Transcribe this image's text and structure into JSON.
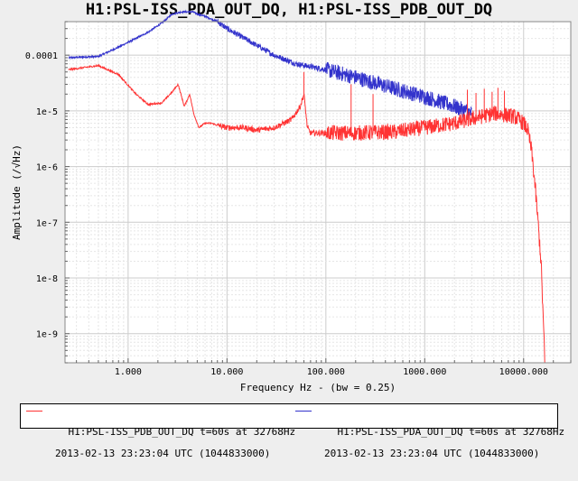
{
  "chart_data": {
    "type": "line",
    "title": "H1:PSL-ISS_PDA_OUT_DQ, H1:PSL-ISS_PDB_OUT_DQ",
    "xlabel": "Frequency Hz - (bw = 0.25)",
    "ylabel": "Amplitude  (/√Hz)",
    "xscale": "log",
    "yscale": "log",
    "xlim": [
      0.23,
      30000
    ],
    "ylim": [
      3e-10,
      0.0004
    ],
    "x_ticks": [
      {
        "value": 1,
        "label": "1.000"
      },
      {
        "value": 10,
        "label": "10.000"
      },
      {
        "value": 100,
        "label": "100.000"
      },
      {
        "value": 1000,
        "label": "1000.000"
      },
      {
        "value": 10000,
        "label": "10000.000"
      }
    ],
    "y_ticks": [
      {
        "value": 0.0001,
        "label": "0.0001"
      },
      {
        "value": 1e-05,
        "label": "1e-5"
      },
      {
        "value": 1e-06,
        "label": "1e-6"
      },
      {
        "value": 1e-07,
        "label": "1e-7"
      },
      {
        "value": 1e-08,
        "label": "1e-8"
      },
      {
        "value": 1e-09,
        "label": "1e-9"
      }
    ],
    "grid": true,
    "series": [
      {
        "name": "H1:PSL-ISS_PDB_OUT_DQ t=60s at 32768Hz",
        "color": "#ff3333",
        "x": [
          0.25,
          0.5,
          0.8,
          1.2,
          1.6,
          2.2,
          2.8,
          3.2,
          3.7,
          4.2,
          4.6,
          5.2,
          6,
          7,
          8,
          10,
          15,
          20,
          30,
          45,
          55,
          60,
          65,
          70,
          100,
          200,
          500,
          1000,
          2000,
          5000,
          8000,
          10000,
          11000,
          12000,
          13000,
          14000,
          15000,
          16000,
          16384
        ],
        "y": [
          5.5e-05,
          6.5e-05,
          4.5e-05,
          2e-05,
          1.3e-05,
          1.4e-05,
          2.2e-05,
          3e-05,
          1.2e-05,
          2e-05,
          9e-06,
          5e-06,
          6e-06,
          6e-06,
          5.5e-06,
          5e-06,
          5e-06,
          4.5e-06,
          5e-06,
          7e-06,
          1.2e-05,
          2e-05,
          5e-06,
          4e-06,
          4e-06,
          4e-06,
          4.2e-06,
          5e-06,
          6e-06,
          9e-06,
          8e-06,
          6e-06,
          4.5e-06,
          2e-06,
          5e-07,
          1e-07,
          2e-08,
          1e-09,
          3e-10
        ]
      },
      {
        "name": "H1:PSL-ISS_PDA_OUT_DQ t=60s at 32768Hz",
        "color": "#3333cc",
        "x": [
          0.25,
          0.5,
          0.8,
          1.2,
          1.6,
          2.2,
          2.8,
          3.5,
          4.5,
          5,
          6,
          8,
          10,
          15,
          20,
          30,
          50,
          100,
          200,
          500,
          1000,
          2000,
          3000
        ],
        "y": [
          9e-05,
          9.5e-05,
          0.00014,
          0.0002,
          0.00026,
          0.00038,
          0.00055,
          0.0006,
          0.0006,
          0.00055,
          0.0005,
          0.0004,
          0.0003,
          0.0002,
          0.00015,
          0.0001,
          7e-05,
          5.5e-05,
          4e-05,
          2.5e-05,
          1.8e-05,
          1.2e-05,
          9e-06
        ]
      }
    ],
    "spikes": [
      {
        "x": 60,
        "y": 5e-05,
        "series": 0
      },
      {
        "x": 180,
        "y": 3e-05,
        "series": 0
      },
      {
        "x": 300,
        "y": 2e-05,
        "series": 0
      },
      {
        "x": 2700,
        "y": 2.4e-05,
        "series": 0
      },
      {
        "x": 3300,
        "y": 2.1e-05,
        "series": 0
      },
      {
        "x": 4000,
        "y": 2.5e-05,
        "series": 0
      },
      {
        "x": 4800,
        "y": 2.2e-05,
        "series": 0
      },
      {
        "x": 5500,
        "y": 2.6e-05,
        "series": 0
      },
      {
        "x": 6400,
        "y": 2.3e-05,
        "series": 0
      }
    ],
    "legend_position": "bottom",
    "legend": [
      {
        "line1": "H1:PSL-ISS_PDB_OUT_DQ t=60s at 32768Hz",
        "line2": "2013-02-13 23:23:04 UTC (1044833000)",
        "color": "#ff3333"
      },
      {
        "line1": "H1:PSL-ISS_PDA_OUT_DQ t=60s at 32768Hz",
        "line2": "2013-02-13 23:23:04 UTC (1044833000)",
        "color": "#3333cc"
      }
    ]
  }
}
